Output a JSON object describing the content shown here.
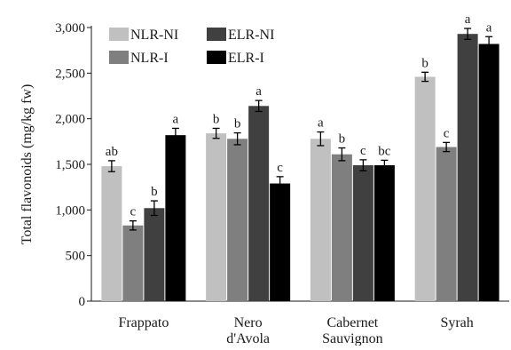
{
  "chart_data": {
    "type": "bar",
    "title": "",
    "xlabel": "",
    "ylabel": "Total flavonoids (mg/kg fw)",
    "ylim": [
      0,
      3000
    ],
    "yticks": [
      0,
      500,
      1000,
      1500,
      2000,
      2500,
      3000
    ],
    "ytick_labels": [
      "0",
      "500",
      "1,000",
      "1,500",
      "2,000",
      "2,500",
      "3,000"
    ],
    "grid": false,
    "legend_position": "top-left",
    "categories": [
      [
        "Frappato"
      ],
      [
        "Nero",
        "d'Avola"
      ],
      [
        "Cabernet",
        "Sauvignon"
      ],
      [
        "Syrah"
      ]
    ],
    "series": [
      {
        "name": "NLR-NI",
        "color": "#c0c0c0",
        "values": [
          1480,
          1840,
          1780,
          2460
        ],
        "errors": [
          60,
          55,
          75,
          50
        ],
        "letters": [
          "ab",
          "b",
          "a",
          "b"
        ]
      },
      {
        "name": "NLR-I",
        "color": "#7f7f7f",
        "values": [
          830,
          1780,
          1610,
          1690
        ],
        "errors": [
          50,
          65,
          70,
          50
        ],
        "letters": [
          "c",
          "b",
          "b",
          "c"
        ]
      },
      {
        "name": "ELR-NI",
        "color": "#404040",
        "values": [
          1020,
          2140,
          1490,
          2930
        ],
        "errors": [
          80,
          60,
          60,
          60
        ],
        "letters": [
          "b",
          "a",
          "c",
          "a"
        ]
      },
      {
        "name": "ELR-I",
        "color": "#000000",
        "values": [
          1820,
          1290,
          1490,
          2820
        ],
        "errors": [
          75,
          75,
          55,
          80
        ],
        "letters": [
          "a",
          "c",
          "bc",
          "a"
        ]
      }
    ]
  }
}
